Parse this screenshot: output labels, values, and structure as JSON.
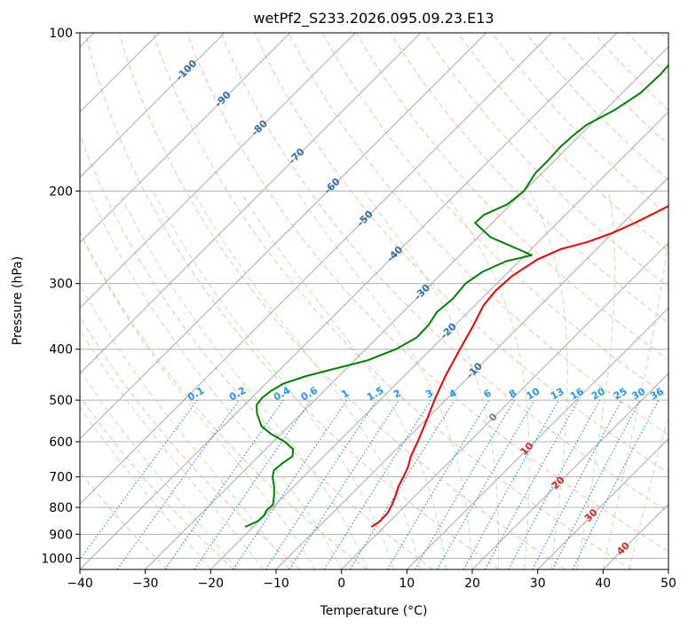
{
  "chart_data": {
    "type": "line",
    "title": "wetPf2_S233.2026.095.09.23.E13",
    "xlabel": "Temperature (°C)",
    "ylabel": "Pressure (hPa)",
    "xlim": [
      -40,
      50
    ],
    "ylim": [
      1050,
      100
    ],
    "x_ticks": [
      "−40",
      "−30",
      "−20",
      "−10",
      "0",
      "10",
      "20",
      "30",
      "40",
      "50"
    ],
    "x_tick_values": [
      -40,
      -30,
      -20,
      -10,
      0,
      10,
      20,
      30,
      40,
      50
    ],
    "y_ticks": [
      "100",
      "200",
      "300",
      "400",
      "500",
      "600",
      "700",
      "800",
      "900",
      "1000"
    ],
    "y_tick_values": [
      100,
      200,
      300,
      400,
      500,
      600,
      700,
      800,
      900,
      1000
    ],
    "colors": {
      "temperature": "#ee0000",
      "dewpoint": "#008000",
      "isotherm": "#aaaaaa",
      "dry_adiabat": "#f4a582",
      "moist_adiabat": "#b2dfa0",
      "mixing_ratio": "#2b8fd9",
      "mixing_label": "#2196f3",
      "isotherm_label_neg": "#2e6fa8",
      "isotherm_label_pos": "#d62728",
      "isotherm_label_zero": "#808080",
      "gridline": "#b0b0b0"
    },
    "series": [
      {
        "name": "Temperature",
        "color": "#ee0000",
        "points": [
          [
            870,
            -1.9
          ],
          [
            850,
            -1.5
          ],
          [
            820,
            -1.6
          ],
          [
            790,
            -2.2
          ],
          [
            760,
            -3.0
          ],
          [
            730,
            -4.0
          ],
          [
            700,
            -4.7
          ],
          [
            670,
            -5.5
          ],
          [
            640,
            -6.7
          ],
          [
            600,
            -7.9
          ],
          [
            560,
            -9.3
          ],
          [
            500,
            -11.7
          ],
          [
            450,
            -13.7
          ],
          [
            400,
            -15.6
          ],
          [
            360,
            -17.2
          ],
          [
            330,
            -18.7
          ],
          [
            310,
            -19.1
          ],
          [
            290,
            -18.8
          ],
          [
            270,
            -17.5
          ],
          [
            258,
            -15.5
          ],
          [
            250,
            -12.5
          ],
          [
            240,
            -10.0
          ],
          [
            230,
            -8.2
          ],
          [
            220,
            -6.6
          ],
          [
            205,
            -4.3
          ],
          [
            190,
            -2.7
          ],
          [
            175,
            -2.0
          ],
          [
            160,
            -0.8
          ],
          [
            145,
            0.8
          ],
          [
            130,
            2.5
          ],
          [
            115,
            4.2
          ],
          [
            105,
            5.7
          ],
          [
            100,
            6.5
          ]
        ]
      },
      {
        "name": "Dewpoint",
        "color": "#008000",
        "points": [
          [
            870,
            -21.2
          ],
          [
            850,
            -20.2
          ],
          [
            830,
            -20.1
          ],
          [
            810,
            -20.5
          ],
          [
            790,
            -20.4
          ],
          [
            760,
            -21.6
          ],
          [
            730,
            -23.0
          ],
          [
            700,
            -24.7
          ],
          [
            680,
            -25.5
          ],
          [
            660,
            -25.3
          ],
          [
            640,
            -24.8
          ],
          [
            620,
            -25.8
          ],
          [
            600,
            -28.2
          ],
          [
            580,
            -31.5
          ],
          [
            560,
            -34.2
          ],
          [
            530,
            -36.8
          ],
          [
            510,
            -38.2
          ],
          [
            495,
            -38.4
          ],
          [
            480,
            -38.1
          ],
          [
            465,
            -37.3
          ],
          [
            450,
            -35.0
          ],
          [
            420,
            -28.0
          ],
          [
            400,
            -25.4
          ],
          [
            380,
            -24.0
          ],
          [
            360,
            -24.1
          ],
          [
            340,
            -24.8
          ],
          [
            320,
            -24.4
          ],
          [
            300,
            -24.8
          ],
          [
            285,
            -24.0
          ],
          [
            272,
            -22.0
          ],
          [
            265,
            -19.0
          ],
          [
            258,
            -22.0
          ],
          [
            245,
            -28.0
          ],
          [
            230,
            -32.6
          ],
          [
            222,
            -32.5
          ],
          [
            212,
            -30.5
          ],
          [
            200,
            -30.0
          ],
          [
            185,
            -31.0
          ],
          [
            175,
            -31.0
          ],
          [
            165,
            -31.2
          ],
          [
            157,
            -31.0
          ],
          [
            150,
            -30.6
          ],
          [
            140,
            -28.5
          ],
          [
            130,
            -27.2
          ],
          [
            120,
            -27.0
          ],
          [
            110,
            -27.4
          ],
          [
            100,
            -27.0
          ]
        ]
      }
    ],
    "mixing_ratio_labels": [
      "0.1",
      "0.2",
      "0.4",
      "0.6",
      "1",
      "1.5",
      "2",
      "3",
      "4",
      "6",
      "8",
      "10",
      "13",
      "16",
      "20",
      "25",
      "30",
      "36"
    ],
    "mixing_ratio_values": [
      0.1,
      0.2,
      0.4,
      0.6,
      1,
      1.5,
      2,
      3,
      4,
      6,
      8,
      10,
      13,
      16,
      20,
      25,
      30,
      36
    ],
    "isotherm_label_values": [
      -100,
      -90,
      -80,
      -70,
      -60,
      -50,
      -40,
      -30,
      -20,
      -10,
      0,
      10,
      20,
      30,
      40
    ],
    "isotherm_labels": [
      "-100",
      "-90",
      "-80",
      "-70",
      "-60",
      "-50",
      "-40",
      "-30",
      "-20",
      "-10",
      "0",
      "10",
      "20",
      "30",
      "40"
    ],
    "grid": true
  }
}
